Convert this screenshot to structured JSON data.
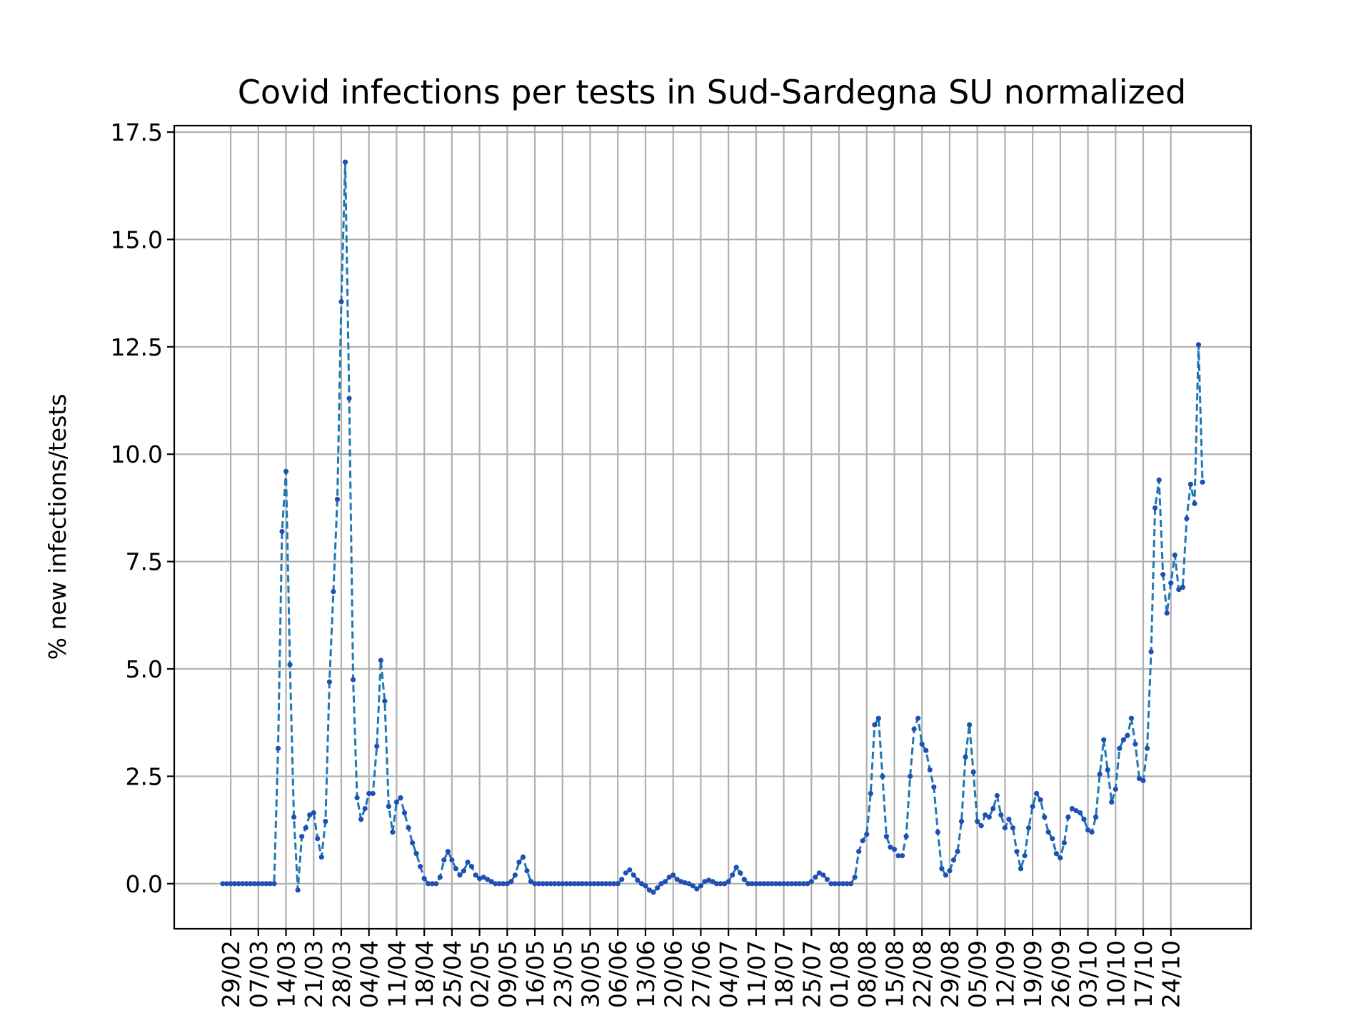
{
  "chart_data": {
    "type": "line",
    "title": "Covid infections per tests in Sud-Sardegna SU normalized",
    "xlabel": "",
    "ylabel": "% new infections/tests",
    "ylim": [
      -1.05,
      17.65
    ],
    "yticks": [
      0.0,
      2.5,
      5.0,
      7.5,
      10.0,
      12.5,
      15.0,
      17.5
    ],
    "ytick_labels": [
      "0.0",
      "2.5",
      "5.0",
      "7.5",
      "10.0",
      "12.5",
      "15.0",
      "17.5"
    ],
    "xtick_labels": [
      "29/02",
      "07/03",
      "14/03",
      "21/03",
      "28/03",
      "04/04",
      "11/04",
      "18/04",
      "25/04",
      "02/05",
      "09/05",
      "16/05",
      "23/05",
      "30/05",
      "06/06",
      "13/06",
      "20/06",
      "27/06",
      "04/07",
      "11/07",
      "18/07",
      "25/07",
      "01/08",
      "08/08",
      "15/08",
      "22/08",
      "29/08",
      "05/09",
      "12/09",
      "19/09",
      "26/09",
      "03/10",
      "10/10",
      "17/10",
      "24/10"
    ],
    "xtick_index_start": 2,
    "xtick_step": 7,
    "grid": true,
    "legend": "none",
    "series_color": "#1f77b4",
    "marker_color": "#1f4fb4",
    "values": [
      0,
      0,
      0,
      0,
      0,
      0,
      0,
      0,
      0,
      0,
      0,
      0,
      0,
      0,
      3.15,
      8.2,
      9.6,
      5.1,
      1.55,
      -0.15,
      1.1,
      1.3,
      1.6,
      1.65,
      1.05,
      0.62,
      1.45,
      4.7,
      6.8,
      8.95,
      13.55,
      16.8,
      11.3,
      4.75,
      2.0,
      1.5,
      1.75,
      2.1,
      2.1,
      3.2,
      5.2,
      4.25,
      1.8,
      1.2,
      1.9,
      2.0,
      1.65,
      1.3,
      0.95,
      0.7,
      0.4,
      0.12,
      0,
      0,
      0,
      0.15,
      0.55,
      0.75,
      0.55,
      0.35,
      0.2,
      0.3,
      0.5,
      0.4,
      0.2,
      0.12,
      0.15,
      0.1,
      0.05,
      0,
      0,
      0,
      0,
      0.05,
      0.2,
      0.5,
      0.62,
      0.3,
      0.05,
      0,
      0,
      0,
      0,
      0,
      0,
      0,
      0,
      0,
      0,
      0,
      0,
      0,
      0,
      0,
      0,
      0,
      0,
      0,
      0,
      0,
      0,
      0.1,
      0.25,
      0.32,
      0.2,
      0.08,
      0,
      -0.05,
      -0.15,
      -0.2,
      -0.1,
      0,
      0.05,
      0.15,
      0.2,
      0.1,
      0.05,
      0.02,
      0,
      -0.05,
      -0.12,
      -0.05,
      0.05,
      0.08,
      0.05,
      0,
      0,
      0,
      0.05,
      0.2,
      0.38,
      0.25,
      0.1,
      0,
      0,
      0,
      0,
      0,
      0,
      0,
      0,
      0,
      0,
      0,
      0,
      0,
      0,
      0,
      0,
      0.05,
      0.15,
      0.25,
      0.2,
      0.1,
      0,
      0,
      0,
      0,
      0,
      0,
      0.15,
      0.75,
      1.0,
      1.15,
      2.1,
      3.7,
      3.85,
      2.5,
      1.1,
      0.85,
      0.8,
      0.65,
      0.65,
      1.1,
      2.5,
      3.6,
      3.85,
      3.25,
      3.1,
      2.65,
      2.25,
      1.2,
      0.35,
      0.2,
      0.3,
      0.55,
      0.75,
      1.45,
      2.95,
      3.7,
      2.6,
      1.45,
      1.35,
      1.6,
      1.55,
      1.75,
      2.05,
      1.6,
      1.3,
      1.5,
      1.3,
      0.75,
      0.35,
      0.65,
      1.3,
      1.8,
      2.1,
      1.95,
      1.55,
      1.2,
      1.05,
      0.7,
      0.6,
      0.95,
      1.55,
      1.75,
      1.7,
      1.65,
      1.5,
      1.25,
      1.2,
      1.55,
      2.55,
      3.35,
      2.65,
      1.9,
      2.2,
      3.15,
      3.35,
      3.45,
      3.85,
      3.25,
      2.45,
      2.4,
      3.15,
      5.4,
      8.75,
      9.4,
      7.2,
      6.3,
      7.0,
      7.65,
      6.85,
      6.9,
      8.5,
      9.3,
      8.85,
      12.55,
      9.35
    ]
  }
}
